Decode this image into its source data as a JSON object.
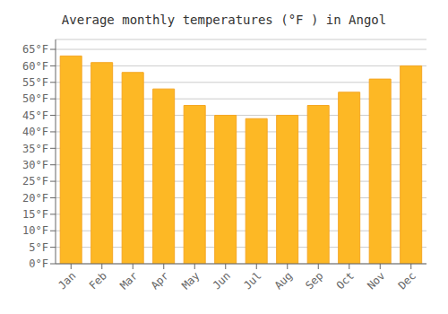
{
  "chart_data": {
    "type": "bar",
    "title": "Average monthly temperatures (°F ) in Angol",
    "categories": [
      "Jan",
      "Feb",
      "Mar",
      "Apr",
      "May",
      "Jun",
      "Jul",
      "Aug",
      "Sep",
      "Oct",
      "Nov",
      "Dec"
    ],
    "values": [
      63,
      61,
      58,
      53,
      48,
      45,
      44,
      45,
      48,
      52,
      56,
      60
    ],
    "color": "#FDB825",
    "ylim": [
      0,
      68
    ],
    "yticks": [
      {
        "value": 0,
        "label": "0°F"
      },
      {
        "value": 5,
        "label": "5°F"
      },
      {
        "value": 10,
        "label": "10°F"
      },
      {
        "value": 15,
        "label": "15°F"
      },
      {
        "value": 20,
        "label": "20°F"
      },
      {
        "value": 25,
        "label": "25°F"
      },
      {
        "value": 30,
        "label": "30°F"
      },
      {
        "value": 35,
        "label": "35°F"
      },
      {
        "value": 40,
        "label": "40°F"
      },
      {
        "value": 45,
        "label": "45°F"
      },
      {
        "value": 50,
        "label": "50°F"
      },
      {
        "value": 55,
        "label": "55°F"
      },
      {
        "value": 60,
        "label": "60°F"
      },
      {
        "value": 65,
        "label": "65°F"
      }
    ],
    "grid": true
  }
}
